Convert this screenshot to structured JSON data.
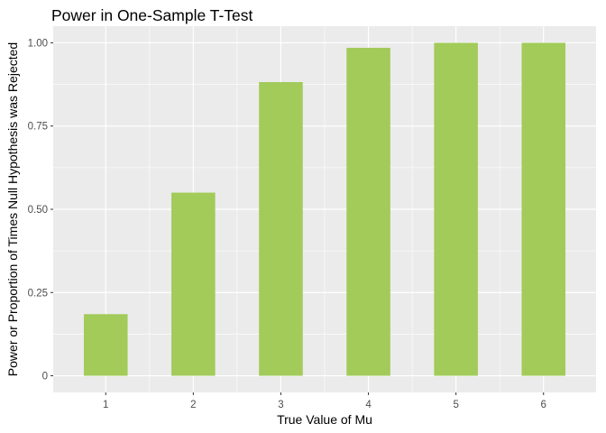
{
  "chart_data": {
    "type": "bar",
    "title": "Power in One-Sample T-Test",
    "xlabel": "True Value of Mu",
    "ylabel": "Power or Proportion of Times Null Hypothesis was Rejected",
    "categories": [
      "1",
      "2",
      "3",
      "4",
      "5",
      "6"
    ],
    "values": [
      0.185,
      0.55,
      0.882,
      0.985,
      1.0,
      1.0
    ],
    "ylim": [
      0,
      1.0
    ],
    "yticks": [
      0,
      0.25,
      0.5,
      0.75,
      1.0
    ],
    "ytick_labels": [
      "0",
      "0.25",
      "0.50",
      "0.75",
      "1.00"
    ],
    "grid": true,
    "colors": {
      "bar": "#a2cb5a",
      "panel_background": "#ebebeb",
      "grid_major": "#ffffff",
      "tick_text": "#4d4d4d"
    }
  }
}
